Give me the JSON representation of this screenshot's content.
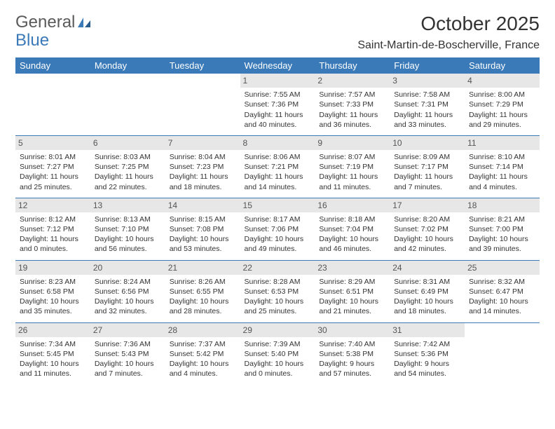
{
  "logo": {
    "word1": "General",
    "word2": "Blue"
  },
  "title": "October 2025",
  "location": "Saint-Martin-de-Boscherville, France",
  "colors": {
    "header_bg": "#3a7ab8",
    "header_fg": "#ffffff",
    "daynum_bg": "#e7e7e7",
    "rule": "#3a7ab8",
    "text": "#333333"
  },
  "weekdays": [
    "Sunday",
    "Monday",
    "Tuesday",
    "Wednesday",
    "Thursday",
    "Friday",
    "Saturday"
  ],
  "weeks": [
    [
      null,
      null,
      null,
      {
        "n": "1",
        "sr": "7:55 AM",
        "ss": "7:36 PM",
        "dl": "11 hours and 40 minutes."
      },
      {
        "n": "2",
        "sr": "7:57 AM",
        "ss": "7:33 PM",
        "dl": "11 hours and 36 minutes."
      },
      {
        "n": "3",
        "sr": "7:58 AM",
        "ss": "7:31 PM",
        "dl": "11 hours and 33 minutes."
      },
      {
        "n": "4",
        "sr": "8:00 AM",
        "ss": "7:29 PM",
        "dl": "11 hours and 29 minutes."
      }
    ],
    [
      {
        "n": "5",
        "sr": "8:01 AM",
        "ss": "7:27 PM",
        "dl": "11 hours and 25 minutes."
      },
      {
        "n": "6",
        "sr": "8:03 AM",
        "ss": "7:25 PM",
        "dl": "11 hours and 22 minutes."
      },
      {
        "n": "7",
        "sr": "8:04 AM",
        "ss": "7:23 PM",
        "dl": "11 hours and 18 minutes."
      },
      {
        "n": "8",
        "sr": "8:06 AM",
        "ss": "7:21 PM",
        "dl": "11 hours and 14 minutes."
      },
      {
        "n": "9",
        "sr": "8:07 AM",
        "ss": "7:19 PM",
        "dl": "11 hours and 11 minutes."
      },
      {
        "n": "10",
        "sr": "8:09 AM",
        "ss": "7:17 PM",
        "dl": "11 hours and 7 minutes."
      },
      {
        "n": "11",
        "sr": "8:10 AM",
        "ss": "7:14 PM",
        "dl": "11 hours and 4 minutes."
      }
    ],
    [
      {
        "n": "12",
        "sr": "8:12 AM",
        "ss": "7:12 PM",
        "dl": "11 hours and 0 minutes."
      },
      {
        "n": "13",
        "sr": "8:13 AM",
        "ss": "7:10 PM",
        "dl": "10 hours and 56 minutes."
      },
      {
        "n": "14",
        "sr": "8:15 AM",
        "ss": "7:08 PM",
        "dl": "10 hours and 53 minutes."
      },
      {
        "n": "15",
        "sr": "8:17 AM",
        "ss": "7:06 PM",
        "dl": "10 hours and 49 minutes."
      },
      {
        "n": "16",
        "sr": "8:18 AM",
        "ss": "7:04 PM",
        "dl": "10 hours and 46 minutes."
      },
      {
        "n": "17",
        "sr": "8:20 AM",
        "ss": "7:02 PM",
        "dl": "10 hours and 42 minutes."
      },
      {
        "n": "18",
        "sr": "8:21 AM",
        "ss": "7:00 PM",
        "dl": "10 hours and 39 minutes."
      }
    ],
    [
      {
        "n": "19",
        "sr": "8:23 AM",
        "ss": "6:58 PM",
        "dl": "10 hours and 35 minutes."
      },
      {
        "n": "20",
        "sr": "8:24 AM",
        "ss": "6:56 PM",
        "dl": "10 hours and 32 minutes."
      },
      {
        "n": "21",
        "sr": "8:26 AM",
        "ss": "6:55 PM",
        "dl": "10 hours and 28 minutes."
      },
      {
        "n": "22",
        "sr": "8:28 AM",
        "ss": "6:53 PM",
        "dl": "10 hours and 25 minutes."
      },
      {
        "n": "23",
        "sr": "8:29 AM",
        "ss": "6:51 PM",
        "dl": "10 hours and 21 minutes."
      },
      {
        "n": "24",
        "sr": "8:31 AM",
        "ss": "6:49 PM",
        "dl": "10 hours and 18 minutes."
      },
      {
        "n": "25",
        "sr": "8:32 AM",
        "ss": "6:47 PM",
        "dl": "10 hours and 14 minutes."
      }
    ],
    [
      {
        "n": "26",
        "sr": "7:34 AM",
        "ss": "5:45 PM",
        "dl": "10 hours and 11 minutes."
      },
      {
        "n": "27",
        "sr": "7:36 AM",
        "ss": "5:43 PM",
        "dl": "10 hours and 7 minutes."
      },
      {
        "n": "28",
        "sr": "7:37 AM",
        "ss": "5:42 PM",
        "dl": "10 hours and 4 minutes."
      },
      {
        "n": "29",
        "sr": "7:39 AM",
        "ss": "5:40 PM",
        "dl": "10 hours and 0 minutes."
      },
      {
        "n": "30",
        "sr": "7:40 AM",
        "ss": "5:38 PM",
        "dl": "9 hours and 57 minutes."
      },
      {
        "n": "31",
        "sr": "7:42 AM",
        "ss": "5:36 PM",
        "dl": "9 hours and 54 minutes."
      },
      null
    ]
  ],
  "labels": {
    "sunrise": "Sunrise:",
    "sunset": "Sunset:",
    "daylight": "Daylight:"
  }
}
